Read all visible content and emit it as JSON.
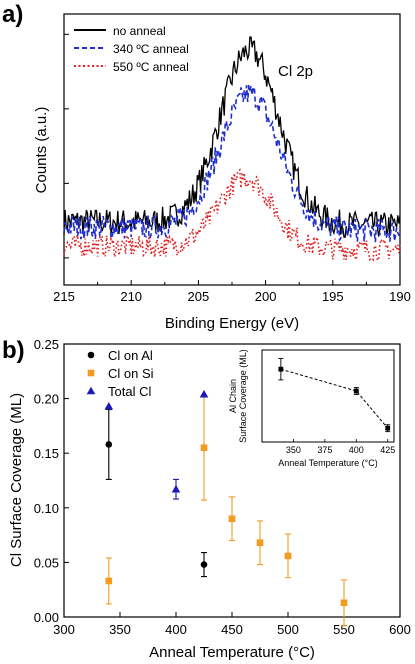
{
  "panel_a": {
    "label": "a)",
    "annotation": "Cl 2p",
    "chart_data": {
      "type": "line",
      "xlabel": "Binding Energy (eV)",
      "ylabel": "Counts (a.u.)",
      "xlim": [
        215,
        190
      ],
      "x_reversed": true,
      "x_ticks": [
        "215",
        "210",
        "205",
        "200",
        "195",
        "190"
      ],
      "y_ticks_labeled": false,
      "ylim": [
        0,
        1
      ],
      "legend_position": "top-left",
      "series": [
        {
          "name": "no anneal",
          "color": "#000000",
          "style": "solid",
          "baseline": 0.22,
          "peak": 0.64,
          "peak_center": 201.2,
          "peak_width": 2.2,
          "noise": 0.05
        },
        {
          "name": "340 ºC anneal",
          "color": "#1f2dcc",
          "style": "dashed",
          "baseline": 0.2,
          "peak": 0.5,
          "peak_center": 201.2,
          "peak_width": 2.2,
          "noise": 0.045
        },
        {
          "name": "550 ºC anneal",
          "color": "#e02020",
          "style": "dotted",
          "baseline": 0.13,
          "peak": 0.26,
          "peak_center": 201.5,
          "peak_width": 2.0,
          "noise": 0.04
        }
      ]
    }
  },
  "panel_b": {
    "label": "b)",
    "chart_data": {
      "type": "scatter",
      "xlabel": "Anneal Temperature (°C)",
      "ylabel": "Cl Surface Coverage (ML)",
      "xlim": [
        300,
        600
      ],
      "ylim": [
        0,
        0.25
      ],
      "x_ticks": [
        "300",
        "350",
        "400",
        "450",
        "500",
        "550",
        "600"
      ],
      "y_ticks": [
        "0.00",
        "0.05",
        "0.10",
        "0.15",
        "0.20",
        "0.25"
      ],
      "legend_position": "top-left",
      "series": [
        {
          "name": "Cl on Al",
          "color": "#000000",
          "marker": "circle",
          "points": [
            {
              "x": 340,
              "y": 0.158,
              "err": 0.032
            },
            {
              "x": 425,
              "y": 0.048,
              "err": 0.011
            }
          ]
        },
        {
          "name": "Cl on Si",
          "color": "#f39a1f",
          "marker": "square",
          "points": [
            {
              "x": 340,
              "y": 0.033,
              "err": 0.021
            },
            {
              "x": 425,
              "y": 0.155,
              "err": 0.048
            },
            {
              "x": 450,
              "y": 0.09,
              "err": 0.02
            },
            {
              "x": 475,
              "y": 0.068,
              "err": 0.02
            },
            {
              "x": 500,
              "y": 0.056,
              "err": 0.02
            },
            {
              "x": 550,
              "y": 0.013,
              "err": 0.021
            }
          ]
        },
        {
          "name": "Total Cl",
          "color": "#1a1ab8",
          "marker": "triangle",
          "points": [
            {
              "x": 340,
              "y": 0.193,
              "err": 0
            },
            {
              "x": 400,
              "y": 0.117,
              "err": 0.009
            },
            {
              "x": 425,
              "y": 0.204,
              "err": 0
            }
          ]
        }
      ]
    },
    "inset": {
      "chart_data": {
        "type": "line",
        "xlabel": "Anneal Temperature (°C)",
        "ylabel_line1": "Al Chain",
        "ylabel_line2": "Surface Coverage (ML)",
        "xlim": [
          325,
          430
        ],
        "ylim": [
          0.03,
          0.27
        ],
        "x_ticks": [
          "350",
          "375",
          "400",
          "425"
        ],
        "line_style": "dashed",
        "series": [
          {
            "name": "",
            "color": "#000000",
            "marker": "square",
            "points": [
              {
                "x": 340,
                "y": 0.22,
                "err": 0.028
              },
              {
                "x": 400,
                "y": 0.163,
                "err": 0.009
              },
              {
                "x": 425,
                "y": 0.066,
                "err": 0.009
              }
            ]
          }
        ]
      }
    }
  }
}
